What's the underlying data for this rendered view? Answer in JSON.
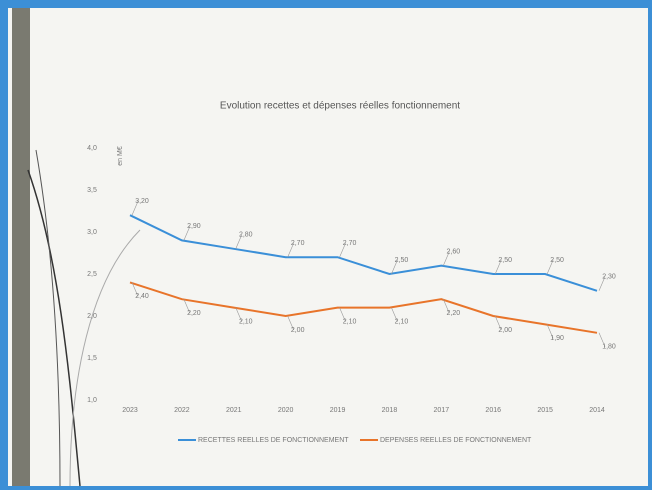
{
  "chart_data": {
    "type": "line",
    "title": "Evolution recettes et dépenses réelles fonctionnement",
    "y_label": "en M€",
    "categories": [
      "2023",
      "2022",
      "2021",
      "2020",
      "2019",
      "2018",
      "2017",
      "2016",
      "2015",
      "2014"
    ],
    "series": [
      {
        "name": "RECETTES REELLES DE FONCTIONNEMENT",
        "color": "#3a8fd8",
        "values": [
          3.2,
          2.9,
          2.8,
          2.7,
          2.7,
          2.5,
          2.6,
          2.5,
          2.5,
          2.3
        ],
        "value_labels": [
          "3,20",
          "2,90",
          "2,80",
          "2,70",
          "2,70",
          "2,50",
          "2,60",
          "2,50",
          "2,50",
          "2,30"
        ]
      },
      {
        "name": "DEPENSES REELLES DE FONCTIONNEMENT",
        "color": "#e8742a",
        "values": [
          2.4,
          2.2,
          2.1,
          2.0,
          2.1,
          2.1,
          2.2,
          2.0,
          1.9,
          1.8
        ],
        "value_labels": [
          "2,40",
          "2,20",
          "2,10",
          "2,00",
          "2,10",
          "2,10",
          "2,20",
          "2,00",
          "1,90",
          "1,80"
        ]
      }
    ],
    "ylim": [
      1,
      4
    ],
    "yticks": [
      {
        "value": 1,
        "label": "1,0"
      },
      {
        "value": 1.5,
        "label": "1,5"
      },
      {
        "value": 2,
        "label": "2,0"
      },
      {
        "value": 2.5,
        "label": "2,5"
      },
      {
        "value": 3,
        "label": "3,0"
      },
      {
        "value": 3.5,
        "label": "3,5"
      },
      {
        "value": 4,
        "label": "4,0"
      }
    ],
    "grid": false,
    "legend": "bottom"
  }
}
